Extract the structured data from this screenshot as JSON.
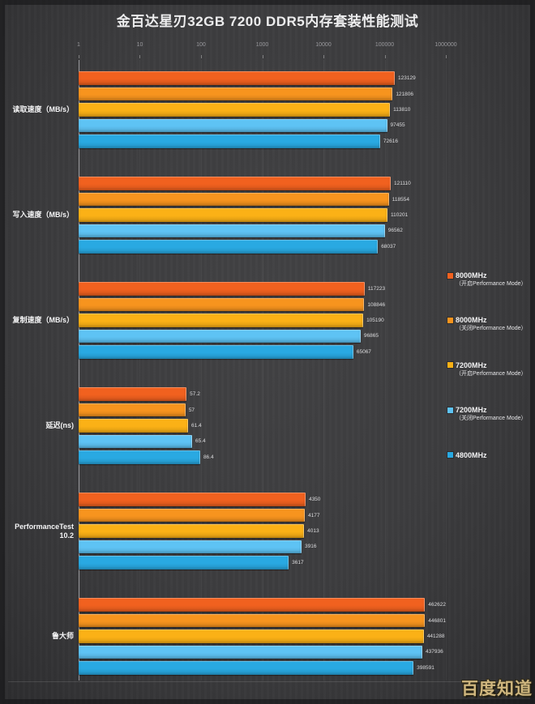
{
  "title": "金百达星刃32GB 7200 DDR5内存套装性能测试",
  "watermark": "百度知道",
  "series": [
    {
      "name": "8000MHz（开启Performance Mode）",
      "line1": "8000MHz",
      "line2": "（开启Performance Mode）",
      "color": "#f1611f"
    },
    {
      "name": "8000MHz（关闭Performance Mode）",
      "line1": "8000MHz",
      "line2": "（关闭Performance Mode）",
      "color": "#f7941e"
    },
    {
      "name": "7200MHz（开启Performance Mode）",
      "line1": "7200MHz",
      "line2": "（开启Performance Mode）",
      "color": "#fbb116"
    },
    {
      "name": "7200MHz（关闭Performance Mode）",
      "line1": "7200MHz",
      "line2": "（关闭Performance Mode）",
      "color": "#5ec3f4"
    },
    {
      "name": "4800MHz",
      "line1": "4800MHz",
      "line2": "",
      "color": "#29a9e2"
    }
  ],
  "chart_data": {
    "type": "bar",
    "orientation": "horizontal",
    "title": "金百达星刃32GB 7200 DDR5内存套装性能测试",
    "axis_scale": "log10",
    "x_ticks": [
      "1",
      "10",
      "100",
      "1000",
      "10000",
      "100000",
      "1000000"
    ],
    "grid": true,
    "legend_position": "right",
    "legend_entries": [
      "8000MHz（开启Performance Mode）",
      "8000MHz（关闭Performance Mode）",
      "7200MHz（开启Performance Mode）",
      "7200MHz（关闭Performance Mode）",
      "4800MHz"
    ],
    "categories": [
      "读取速度（MB/s）",
      "写入速度（MB/s）",
      "复制速度（MB/s）",
      "延迟(ns)",
      "PerformanceTest 10.2",
      "鲁大师"
    ],
    "groups": [
      {
        "label": "读取速度（MB/s）",
        "values": [
          123129,
          121806,
          113810,
          97455,
          72616
        ],
        "widths_pct": [
          86.1,
          85.5,
          84.8,
          84.0,
          82.1
        ]
      },
      {
        "label": "写入速度（MB/s）",
        "values": [
          121110,
          118554,
          110201,
          96562,
          68037
        ],
        "widths_pct": [
          85.0,
          84.5,
          84.1,
          83.4,
          81.5
        ]
      },
      {
        "label": "复制速度（MB/s）",
        "values": [
          117223,
          108846,
          105190,
          96865,
          65067
        ],
        "widths_pct": [
          77.9,
          77.8,
          77.5,
          76.8,
          74.8
        ]
      },
      {
        "label": "延迟(ns)",
        "values": [
          57.2,
          57,
          61.4,
          65.4,
          86.4
        ],
        "widths_pct": [
          29.4,
          29.1,
          29.8,
          30.9,
          33.1
        ]
      },
      {
        "label": "PerformanceTest 10.2",
        "values": [
          4350,
          4177,
          4013,
          3916,
          3617
        ],
        "widths_pct": [
          61.8,
          61.6,
          61.4,
          60.7,
          57.2
        ]
      },
      {
        "label": "鲁大师",
        "values": [
          462622,
          446801,
          441288,
          437936,
          398591
        ],
        "widths_pct": [
          95.1,
          94.9,
          94.0,
          93.6,
          91.2
        ]
      }
    ]
  }
}
